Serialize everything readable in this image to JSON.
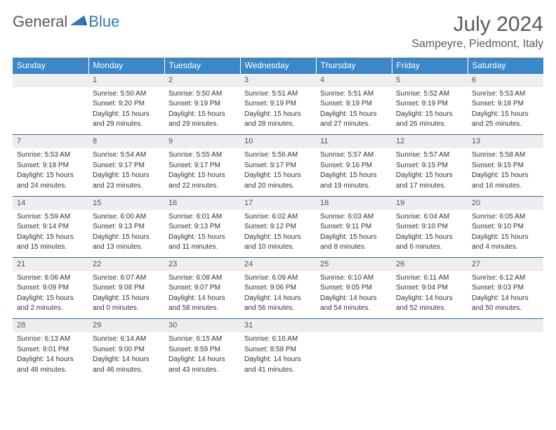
{
  "brand": {
    "part1": "General",
    "part2": "Blue"
  },
  "title": "July 2024",
  "location": "Sampeyre, Piedmont, Italy",
  "colors": {
    "header_bg": "#3b88c9",
    "header_text": "#ffffff",
    "daynum_bg": "#eeeeee",
    "row_divider": "#2f6aa0",
    "brand_gray": "#5a5a5a",
    "brand_blue": "#2f78bf",
    "body_text": "#333333",
    "page_bg": "#ffffff"
  },
  "typography": {
    "title_fontsize": 30,
    "location_fontsize": 16,
    "weekday_fontsize": 12,
    "daynum_fontsize": 11,
    "cell_fontsize": 10
  },
  "weekdays": [
    "Sunday",
    "Monday",
    "Tuesday",
    "Wednesday",
    "Thursday",
    "Friday",
    "Saturday"
  ],
  "weeks": [
    [
      null,
      {
        "n": "1",
        "sr": "Sunrise: 5:50 AM",
        "ss": "Sunset: 9:20 PM",
        "d1": "Daylight: 15 hours",
        "d2": "and 29 minutes."
      },
      {
        "n": "2",
        "sr": "Sunrise: 5:50 AM",
        "ss": "Sunset: 9:19 PM",
        "d1": "Daylight: 15 hours",
        "d2": "and 29 minutes."
      },
      {
        "n": "3",
        "sr": "Sunrise: 5:51 AM",
        "ss": "Sunset: 9:19 PM",
        "d1": "Daylight: 15 hours",
        "d2": "and 28 minutes."
      },
      {
        "n": "4",
        "sr": "Sunrise: 5:51 AM",
        "ss": "Sunset: 9:19 PM",
        "d1": "Daylight: 15 hours",
        "d2": "and 27 minutes."
      },
      {
        "n": "5",
        "sr": "Sunrise: 5:52 AM",
        "ss": "Sunset: 9:19 PM",
        "d1": "Daylight: 15 hours",
        "d2": "and 26 minutes."
      },
      {
        "n": "6",
        "sr": "Sunrise: 5:53 AM",
        "ss": "Sunset: 9:18 PM",
        "d1": "Daylight: 15 hours",
        "d2": "and 25 minutes."
      }
    ],
    [
      {
        "n": "7",
        "sr": "Sunrise: 5:53 AM",
        "ss": "Sunset: 9:18 PM",
        "d1": "Daylight: 15 hours",
        "d2": "and 24 minutes."
      },
      {
        "n": "8",
        "sr": "Sunrise: 5:54 AM",
        "ss": "Sunset: 9:17 PM",
        "d1": "Daylight: 15 hours",
        "d2": "and 23 minutes."
      },
      {
        "n": "9",
        "sr": "Sunrise: 5:55 AM",
        "ss": "Sunset: 9:17 PM",
        "d1": "Daylight: 15 hours",
        "d2": "and 22 minutes."
      },
      {
        "n": "10",
        "sr": "Sunrise: 5:56 AM",
        "ss": "Sunset: 9:17 PM",
        "d1": "Daylight: 15 hours",
        "d2": "and 20 minutes."
      },
      {
        "n": "11",
        "sr": "Sunrise: 5:57 AM",
        "ss": "Sunset: 9:16 PM",
        "d1": "Daylight: 15 hours",
        "d2": "and 19 minutes."
      },
      {
        "n": "12",
        "sr": "Sunrise: 5:57 AM",
        "ss": "Sunset: 9:15 PM",
        "d1": "Daylight: 15 hours",
        "d2": "and 17 minutes."
      },
      {
        "n": "13",
        "sr": "Sunrise: 5:58 AM",
        "ss": "Sunset: 9:15 PM",
        "d1": "Daylight: 15 hours",
        "d2": "and 16 minutes."
      }
    ],
    [
      {
        "n": "14",
        "sr": "Sunrise: 5:59 AM",
        "ss": "Sunset: 9:14 PM",
        "d1": "Daylight: 15 hours",
        "d2": "and 15 minutes."
      },
      {
        "n": "15",
        "sr": "Sunrise: 6:00 AM",
        "ss": "Sunset: 9:13 PM",
        "d1": "Daylight: 15 hours",
        "d2": "and 13 minutes."
      },
      {
        "n": "16",
        "sr": "Sunrise: 6:01 AM",
        "ss": "Sunset: 9:13 PM",
        "d1": "Daylight: 15 hours",
        "d2": "and 11 minutes."
      },
      {
        "n": "17",
        "sr": "Sunrise: 6:02 AM",
        "ss": "Sunset: 9:12 PM",
        "d1": "Daylight: 15 hours",
        "d2": "and 10 minutes."
      },
      {
        "n": "18",
        "sr": "Sunrise: 6:03 AM",
        "ss": "Sunset: 9:11 PM",
        "d1": "Daylight: 15 hours",
        "d2": "and 8 minutes."
      },
      {
        "n": "19",
        "sr": "Sunrise: 6:04 AM",
        "ss": "Sunset: 9:10 PM",
        "d1": "Daylight: 15 hours",
        "d2": "and 6 minutes."
      },
      {
        "n": "20",
        "sr": "Sunrise: 6:05 AM",
        "ss": "Sunset: 9:10 PM",
        "d1": "Daylight: 15 hours",
        "d2": "and 4 minutes."
      }
    ],
    [
      {
        "n": "21",
        "sr": "Sunrise: 6:06 AM",
        "ss": "Sunset: 9:09 PM",
        "d1": "Daylight: 15 hours",
        "d2": "and 2 minutes."
      },
      {
        "n": "22",
        "sr": "Sunrise: 6:07 AM",
        "ss": "Sunset: 9:08 PM",
        "d1": "Daylight: 15 hours",
        "d2": "and 0 minutes."
      },
      {
        "n": "23",
        "sr": "Sunrise: 6:08 AM",
        "ss": "Sunset: 9:07 PM",
        "d1": "Daylight: 14 hours",
        "d2": "and 58 minutes."
      },
      {
        "n": "24",
        "sr": "Sunrise: 6:09 AM",
        "ss": "Sunset: 9:06 PM",
        "d1": "Daylight: 14 hours",
        "d2": "and 56 minutes."
      },
      {
        "n": "25",
        "sr": "Sunrise: 6:10 AM",
        "ss": "Sunset: 9:05 PM",
        "d1": "Daylight: 14 hours",
        "d2": "and 54 minutes."
      },
      {
        "n": "26",
        "sr": "Sunrise: 6:11 AM",
        "ss": "Sunset: 9:04 PM",
        "d1": "Daylight: 14 hours",
        "d2": "and 52 minutes."
      },
      {
        "n": "27",
        "sr": "Sunrise: 6:12 AM",
        "ss": "Sunset: 9:03 PM",
        "d1": "Daylight: 14 hours",
        "d2": "and 50 minutes."
      }
    ],
    [
      {
        "n": "28",
        "sr": "Sunrise: 6:13 AM",
        "ss": "Sunset: 9:01 PM",
        "d1": "Daylight: 14 hours",
        "d2": "and 48 minutes."
      },
      {
        "n": "29",
        "sr": "Sunrise: 6:14 AM",
        "ss": "Sunset: 9:00 PM",
        "d1": "Daylight: 14 hours",
        "d2": "and 46 minutes."
      },
      {
        "n": "30",
        "sr": "Sunrise: 6:15 AM",
        "ss": "Sunset: 8:59 PM",
        "d1": "Daylight: 14 hours",
        "d2": "and 43 minutes."
      },
      {
        "n": "31",
        "sr": "Sunrise: 6:16 AM",
        "ss": "Sunset: 8:58 PM",
        "d1": "Daylight: 14 hours",
        "d2": "and 41 minutes."
      },
      null,
      null,
      null
    ]
  ]
}
